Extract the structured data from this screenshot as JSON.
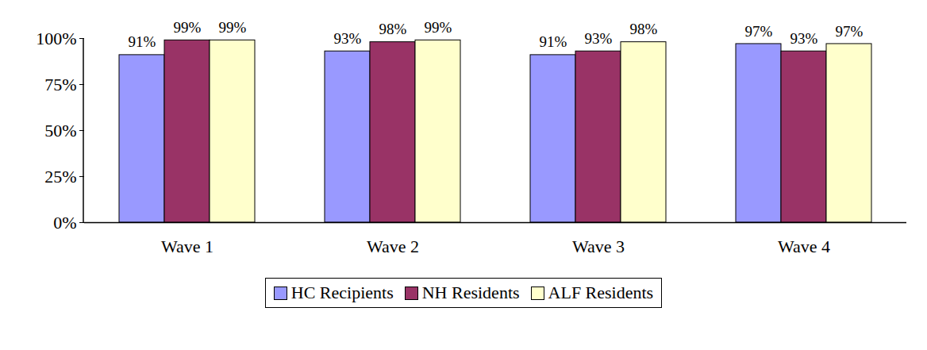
{
  "chart_data": {
    "type": "bar",
    "categories": [
      "Wave 1",
      "Wave 2",
      "Wave 3",
      "Wave 4"
    ],
    "series": [
      {
        "name": "HC Recipients",
        "color": "#9999ff",
        "values": [
          91,
          93,
          91,
          97
        ],
        "value_labels": [
          "91%",
          "93%",
          "91%",
          "97%"
        ]
      },
      {
        "name": "NH Residents",
        "color": "#993366",
        "values": [
          99,
          98,
          93,
          93
        ],
        "value_labels": [
          "99%",
          "98%",
          "93%",
          "93%"
        ]
      },
      {
        "name": "ALF Residents",
        "color": "#ffffcc",
        "values": [
          99,
          99,
          98,
          97
        ],
        "value_labels": [
          "99%",
          "99%",
          "98%",
          "97%"
        ]
      }
    ],
    "ylim": [
      0,
      100
    ],
    "yticks": [
      {
        "value": 0,
        "label": "0%"
      },
      {
        "value": 25,
        "label": "25%"
      },
      {
        "value": 50,
        "label": "50%"
      },
      {
        "value": 75,
        "label": "75%"
      },
      {
        "value": 100,
        "label": "100%"
      }
    ],
    "grid": false,
    "legend": "bottom",
    "data_labels": true
  }
}
